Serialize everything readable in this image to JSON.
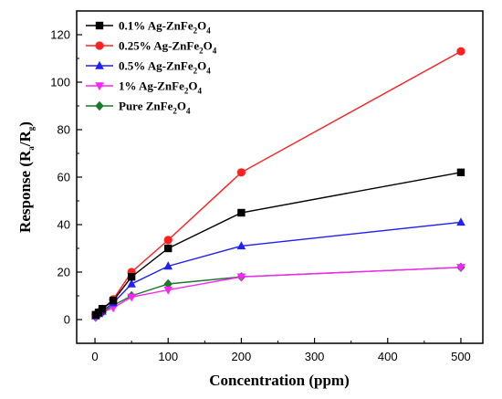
{
  "chart_data": {
    "type": "line",
    "xlabel": "Concentration (ppm)",
    "ylabel": {
      "base": "Response (R",
      "sub1": "a",
      "mid": "/R",
      "sub2": "g",
      "end": ")"
    },
    "xlim": [
      -25,
      530
    ],
    "ylim": [
      -10,
      130
    ],
    "xticks": [
      0,
      100,
      200,
      300,
      400,
      500
    ],
    "yticks": [
      0,
      20,
      40,
      60,
      80,
      100,
      120
    ],
    "grid": false,
    "legend_position": "top-left",
    "x": [
      1,
      5,
      10,
      25,
      50,
      100,
      200,
      500
    ],
    "series": [
      {
        "name": {
          "pre": "0.1% Ag-ZnFe",
          "s1": "2",
          "mid": "O",
          "s2": "4"
        },
        "color": "#000000",
        "marker": "square",
        "values": [
          2,
          3,
          4.5,
          8,
          18,
          30,
          45,
          62
        ]
      },
      {
        "name": {
          "pre": "0.25% Ag-ZnFe",
          "s1": "2",
          "mid": "O",
          "s2": "4"
        },
        "color": "#ff2020",
        "marker": "circle",
        "values": [
          2,
          3,
          4.5,
          8.5,
          20,
          33.5,
          62,
          113
        ]
      },
      {
        "name": {
          "pre": "0.5% Ag-ZnFe",
          "s1": "2",
          "mid": "O",
          "s2": "4"
        },
        "color": "#1f1fff",
        "marker": "triangle-up",
        "values": [
          1.5,
          2.5,
          3.5,
          7,
          15,
          22.5,
          31,
          41
        ]
      },
      {
        "name": {
          "pre": "1% Ag-ZnFe",
          "s1": "2",
          "mid": "O",
          "s2": "4"
        },
        "color": "#ff22ff",
        "marker": "triangle-down",
        "values": [
          1,
          2,
          3,
          5,
          9.5,
          12.5,
          18,
          22
        ]
      },
      {
        "name": {
          "pre": "Pure ZnFe",
          "s1": "2",
          "mid": "O",
          "s2": "4"
        },
        "color": "#1a7a2a",
        "marker": "diamond",
        "values": [
          1,
          2,
          3,
          6,
          10,
          15,
          18,
          22
        ]
      }
    ]
  }
}
